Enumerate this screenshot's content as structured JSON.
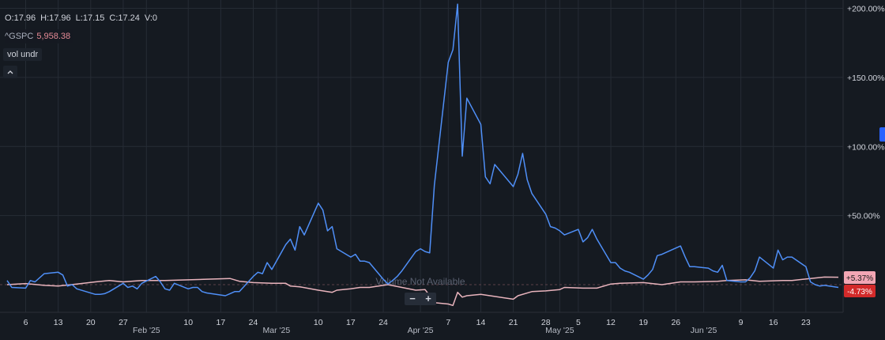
{
  "legend": {
    "ohlc": [
      "O:17.96",
      "H:17.96",
      "L:17.15",
      "C:17.24",
      "V:0"
    ],
    "symbol": "^GSPC",
    "symbol_value": "5,958.38",
    "indicator": "vol undr"
  },
  "collapse_icon": "chevron-up-icon",
  "watermark": "Volume Not Available",
  "zoom": {
    "minus": "−",
    "plus": "+"
  },
  "colors": {
    "background": "#151a21",
    "series_main": "#4f8ff7",
    "series_compare": "#e9b4bd",
    "badge_up": "#f2a6b4",
    "badge_down": "#d32a2a"
  },
  "chart_data": {
    "type": "line",
    "ylim": [
      -20,
      206
    ],
    "y_ticks": [
      "+200.00%",
      "+150.00%",
      "+100.00%",
      "+50.00%"
    ],
    "y_tick_values": [
      200,
      150,
      100,
      50
    ],
    "x_date_range": [
      "2025-01-02",
      "2025-06-30"
    ],
    "x_ticks": [
      {
        "label": "6",
        "date": "2025-01-06"
      },
      {
        "label": "13",
        "date": "2025-01-13"
      },
      {
        "label": "20",
        "date": "2025-01-20"
      },
      {
        "label": "27",
        "date": "2025-01-27"
      },
      {
        "label": "Feb '25",
        "date": "2025-02-01"
      },
      {
        "label": "10",
        "date": "2025-02-10"
      },
      {
        "label": "17",
        "date": "2025-02-17"
      },
      {
        "label": "24",
        "date": "2025-02-24"
      },
      {
        "label": "Mar '25",
        "date": "2025-03-01"
      },
      {
        "label": "10",
        "date": "2025-03-10"
      },
      {
        "label": "17",
        "date": "2025-03-17"
      },
      {
        "label": "24",
        "date": "2025-03-24"
      },
      {
        "label": "Apr '25",
        "date": "2025-04-01"
      },
      {
        "label": "7",
        "date": "2025-04-07"
      },
      {
        "label": "14",
        "date": "2025-04-14"
      },
      {
        "label": "21",
        "date": "2025-04-21"
      },
      {
        "label": "28",
        "date": "2025-04-28"
      },
      {
        "label": "May '25",
        "date": "2025-05-01"
      },
      {
        "label": "5",
        "date": "2025-05-05"
      },
      {
        "label": "12",
        "date": "2025-05-12"
      },
      {
        "label": "19",
        "date": "2025-05-19"
      },
      {
        "label": "26",
        "date": "2025-05-26"
      },
      {
        "label": "Jun '25",
        "date": "2025-06-01"
      },
      {
        "label": "9",
        "date": "2025-06-09"
      },
      {
        "label": "16",
        "date": "2025-06-16"
      },
      {
        "label": "23",
        "date": "2025-06-23"
      }
    ],
    "series": [
      {
        "color": "#4f8ff7",
        "points": [
          [
            "2025-01-02",
            3
          ],
          [
            "2025-01-03",
            -2
          ],
          [
            "2025-01-06",
            -2.5
          ],
          [
            "2025-01-07",
            3
          ],
          [
            "2025-01-08",
            2
          ],
          [
            "2025-01-10",
            8
          ],
          [
            "2025-01-13",
            9
          ],
          [
            "2025-01-14",
            7
          ],
          [
            "2025-01-15",
            -1
          ],
          [
            "2025-01-16",
            0
          ],
          [
            "2025-01-17",
            -3
          ],
          [
            "2025-01-21",
            -7
          ],
          [
            "2025-01-22",
            -7
          ],
          [
            "2025-01-23",
            -6.5
          ],
          [
            "2025-01-24",
            -5
          ],
          [
            "2025-01-27",
            1
          ],
          [
            "2025-01-28",
            -2
          ],
          [
            "2025-01-29",
            -1
          ],
          [
            "2025-01-30",
            -3
          ],
          [
            "2025-01-31",
            1
          ],
          [
            "2025-02-03",
            6
          ],
          [
            "2025-02-04",
            2
          ],
          [
            "2025-02-05",
            -3
          ],
          [
            "2025-02-06",
            -4
          ],
          [
            "2025-02-07",
            1
          ],
          [
            "2025-02-10",
            -3
          ],
          [
            "2025-02-11",
            -2
          ],
          [
            "2025-02-12",
            -2
          ],
          [
            "2025-02-13",
            -5
          ],
          [
            "2025-02-14",
            -6
          ],
          [
            "2025-02-18",
            -8
          ],
          [
            "2025-02-19",
            -6.5
          ],
          [
            "2025-02-20",
            -5
          ],
          [
            "2025-02-21",
            -5
          ],
          [
            "2025-02-24",
            6
          ],
          [
            "2025-02-25",
            9
          ],
          [
            "2025-02-26",
            8
          ],
          [
            "2025-02-27",
            16
          ],
          [
            "2025-02-28",
            11
          ],
          [
            "2025-03-03",
            29
          ],
          [
            "2025-03-04",
            33
          ],
          [
            "2025-03-05",
            25
          ],
          [
            "2025-03-06",
            42
          ],
          [
            "2025-03-07",
            36
          ],
          [
            "2025-03-10",
            59
          ],
          [
            "2025-03-11",
            54
          ],
          [
            "2025-03-12",
            39
          ],
          [
            "2025-03-13",
            42
          ],
          [
            "2025-03-14",
            26
          ],
          [
            "2025-03-17",
            20
          ],
          [
            "2025-03-18",
            22
          ],
          [
            "2025-03-19",
            17
          ],
          [
            "2025-03-20",
            17
          ],
          [
            "2025-03-21",
            16
          ],
          [
            "2025-03-24",
            4
          ],
          [
            "2025-03-25",
            0.5
          ],
          [
            "2025-03-26",
            3
          ],
          [
            "2025-03-27",
            6
          ],
          [
            "2025-03-28",
            10
          ],
          [
            "2025-03-31",
            24
          ],
          [
            "2025-04-01",
            26
          ],
          [
            "2025-04-02",
            24
          ],
          [
            "2025-04-03",
            23
          ],
          [
            "2025-04-04",
            72
          ],
          [
            "2025-04-07",
            161
          ],
          [
            "2025-04-08",
            170
          ],
          [
            "2025-04-09",
            203
          ],
          [
            "2025-04-10",
            93
          ],
          [
            "2025-04-11",
            135
          ],
          [
            "2025-04-14",
            116
          ],
          [
            "2025-04-15",
            78
          ],
          [
            "2025-04-16",
            73
          ],
          [
            "2025-04-17",
            87
          ],
          [
            "2025-04-21",
            71
          ],
          [
            "2025-04-22",
            80
          ],
          [
            "2025-04-23",
            95
          ],
          [
            "2025-04-24",
            76
          ],
          [
            "2025-04-25",
            66
          ],
          [
            "2025-04-28",
            51
          ],
          [
            "2025-04-29",
            42
          ],
          [
            "2025-04-30",
            41
          ],
          [
            "2025-05-01",
            39
          ],
          [
            "2025-05-02",
            36
          ],
          [
            "2025-05-05",
            40
          ],
          [
            "2025-05-06",
            31
          ],
          [
            "2025-05-07",
            34
          ],
          [
            "2025-05-08",
            40
          ],
          [
            "2025-05-09",
            33
          ],
          [
            "2025-05-12",
            16
          ],
          [
            "2025-05-13",
            16
          ],
          [
            "2025-05-14",
            12
          ],
          [
            "2025-05-15",
            10
          ],
          [
            "2025-05-16",
            9
          ],
          [
            "2025-05-19",
            4
          ],
          [
            "2025-05-20",
            7
          ],
          [
            "2025-05-21",
            11
          ],
          [
            "2025-05-22",
            21
          ],
          [
            "2025-05-23",
            22
          ],
          [
            "2025-05-27",
            28
          ],
          [
            "2025-05-28",
            20
          ],
          [
            "2025-05-29",
            13
          ],
          [
            "2025-05-30",
            13
          ],
          [
            "2025-06-02",
            12
          ],
          [
            "2025-06-03",
            10
          ],
          [
            "2025-06-04",
            9
          ],
          [
            "2025-06-05",
            14
          ],
          [
            "2025-06-06",
            3
          ],
          [
            "2025-06-09",
            2
          ],
          [
            "2025-06-10",
            2
          ],
          [
            "2025-06-11",
            5
          ],
          [
            "2025-06-12",
            10
          ],
          [
            "2025-06-13",
            20
          ],
          [
            "2025-06-16",
            12
          ],
          [
            "2025-06-17",
            25
          ],
          [
            "2025-06-18",
            18
          ],
          [
            "2025-06-19",
            20
          ],
          [
            "2025-06-20",
            20
          ],
          [
            "2025-06-23",
            13
          ],
          [
            "2025-06-24",
            2
          ],
          [
            "2025-06-25",
            0
          ],
          [
            "2025-06-26",
            -1
          ],
          [
            "2025-06-27",
            -0.5
          ],
          [
            "2025-06-30",
            -2
          ]
        ]
      },
      {
        "color": "#e9b4bd",
        "points": [
          [
            "2025-01-02",
            0
          ],
          [
            "2025-01-06",
            0.8
          ],
          [
            "2025-01-10",
            -0.5
          ],
          [
            "2025-01-13",
            -1
          ],
          [
            "2025-01-17",
            0.5
          ],
          [
            "2025-01-21",
            2
          ],
          [
            "2025-01-24",
            3
          ],
          [
            "2025-01-27",
            2
          ],
          [
            "2025-01-31",
            3
          ],
          [
            "2025-02-05",
            3
          ],
          [
            "2025-02-10",
            3.5
          ],
          [
            "2025-02-14",
            4
          ],
          [
            "2025-02-19",
            4.5
          ],
          [
            "2025-02-21",
            2.5
          ],
          [
            "2025-02-24",
            1.5
          ],
          [
            "2025-02-28",
            1
          ],
          [
            "2025-03-03",
            1
          ],
          [
            "2025-03-04",
            -1
          ],
          [
            "2025-03-06",
            -1.5
          ],
          [
            "2025-03-10",
            -4
          ],
          [
            "2025-03-11",
            -4.5
          ],
          [
            "2025-03-13",
            -5.5
          ],
          [
            "2025-03-14",
            -4
          ],
          [
            "2025-03-17",
            -3
          ],
          [
            "2025-03-19",
            -2
          ],
          [
            "2025-03-21",
            -2
          ],
          [
            "2025-03-24",
            -0.5
          ],
          [
            "2025-03-25",
            0
          ],
          [
            "2025-03-28",
            -2
          ],
          [
            "2025-03-31",
            -4
          ],
          [
            "2025-04-02",
            -3.5
          ],
          [
            "2025-04-03",
            -8
          ],
          [
            "2025-04-04",
            -13
          ],
          [
            "2025-04-07",
            -14
          ],
          [
            "2025-04-08",
            -15
          ],
          [
            "2025-04-09",
            -5.5
          ],
          [
            "2025-04-10",
            -9
          ],
          [
            "2025-04-11",
            -8
          ],
          [
            "2025-04-14",
            -7
          ],
          [
            "2025-04-16",
            -8
          ],
          [
            "2025-04-21",
            -10.5
          ],
          [
            "2025-04-22",
            -8
          ],
          [
            "2025-04-25",
            -5
          ],
          [
            "2025-04-28",
            -4.5
          ],
          [
            "2025-05-01",
            -3.5
          ],
          [
            "2025-05-02",
            -2
          ],
          [
            "2025-05-06",
            -2.5
          ],
          [
            "2025-05-09",
            -2.5
          ],
          [
            "2025-05-12",
            0.5
          ],
          [
            "2025-05-14",
            1
          ],
          [
            "2025-05-19",
            1.5
          ],
          [
            "2025-05-23",
            0
          ],
          [
            "2025-05-27",
            2
          ],
          [
            "2025-05-30",
            2
          ],
          [
            "2025-06-04",
            2.5
          ],
          [
            "2025-06-06",
            3
          ],
          [
            "2025-06-10",
            3.5
          ],
          [
            "2025-06-13",
            2.5
          ],
          [
            "2025-06-18",
            3
          ],
          [
            "2025-06-20",
            3
          ],
          [
            "2025-06-24",
            4.5
          ],
          [
            "2025-06-27",
            5.5
          ],
          [
            "2025-06-30",
            5.4
          ]
        ]
      }
    ],
    "badges": [
      {
        "label": "+5.37%",
        "value": 5.37,
        "color": "#f2a6b4",
        "text_color": "#1a1a1a"
      },
      {
        "label": "-4.73%",
        "value": -4.73,
        "color": "#d32a2a",
        "text_color": "#ffffff"
      }
    ],
    "zero_line": true,
    "grid": true
  }
}
